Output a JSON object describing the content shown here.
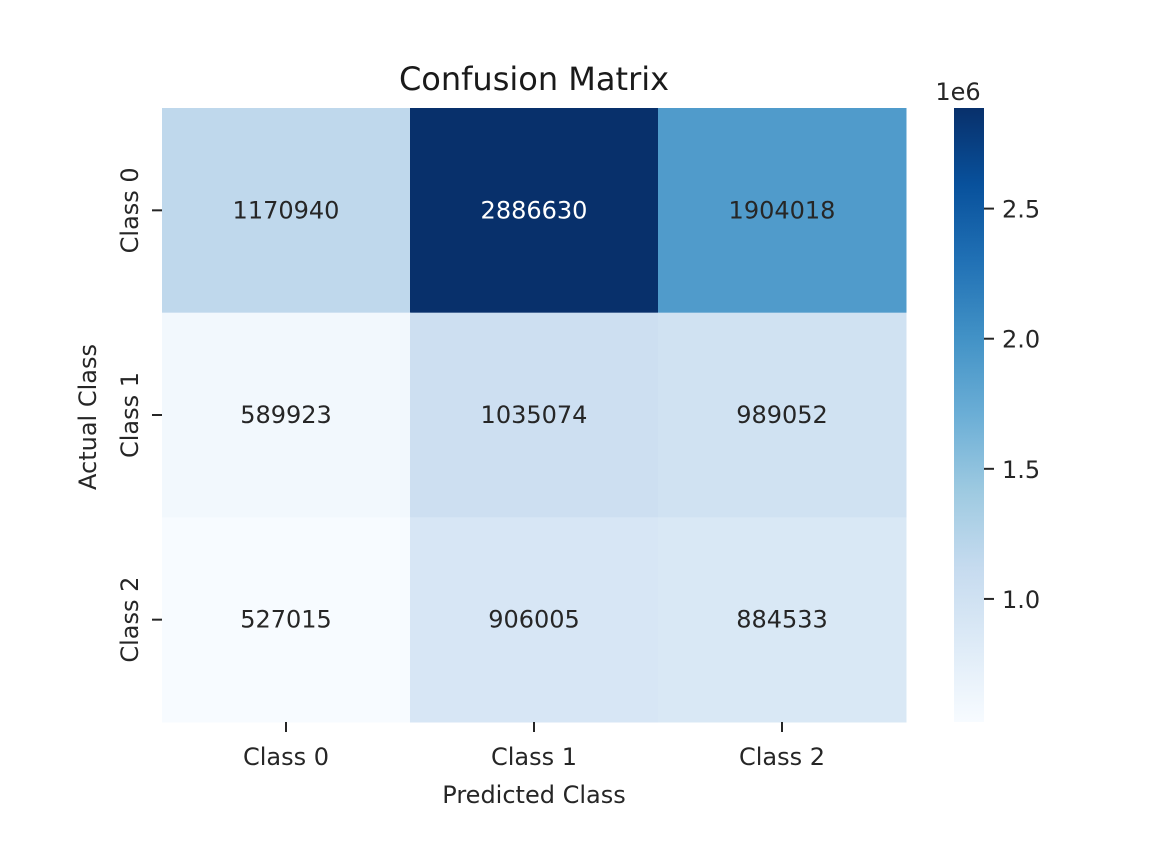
{
  "chart_data": {
    "type": "heatmap",
    "title": "Confusion Matrix",
    "xlabel": "Predicted Class",
    "ylabel": "Actual Class",
    "x_categories": [
      "Class 0",
      "Class 1",
      "Class 2"
    ],
    "y_categories": [
      "Class 0",
      "Class 1",
      "Class 2"
    ],
    "values": [
      [
        1170940,
        2886630,
        1904018
      ],
      [
        589923,
        1035074,
        989052
      ],
      [
        527015,
        906005,
        884533
      ]
    ],
    "colormap": "Blues",
    "colorbar": {
      "range": [
        527015,
        2886630
      ],
      "ticks": [
        1.0,
        1.5,
        2.0,
        2.5
      ],
      "tick_labels": [
        "1.0",
        "1.5",
        "2.0",
        "2.5"
      ],
      "scale_label": "1e6"
    },
    "colors": {
      "low": "#f7fbff",
      "high": "#08306b",
      "text_dark": "#262626",
      "text_light": "#ffffff"
    }
  }
}
